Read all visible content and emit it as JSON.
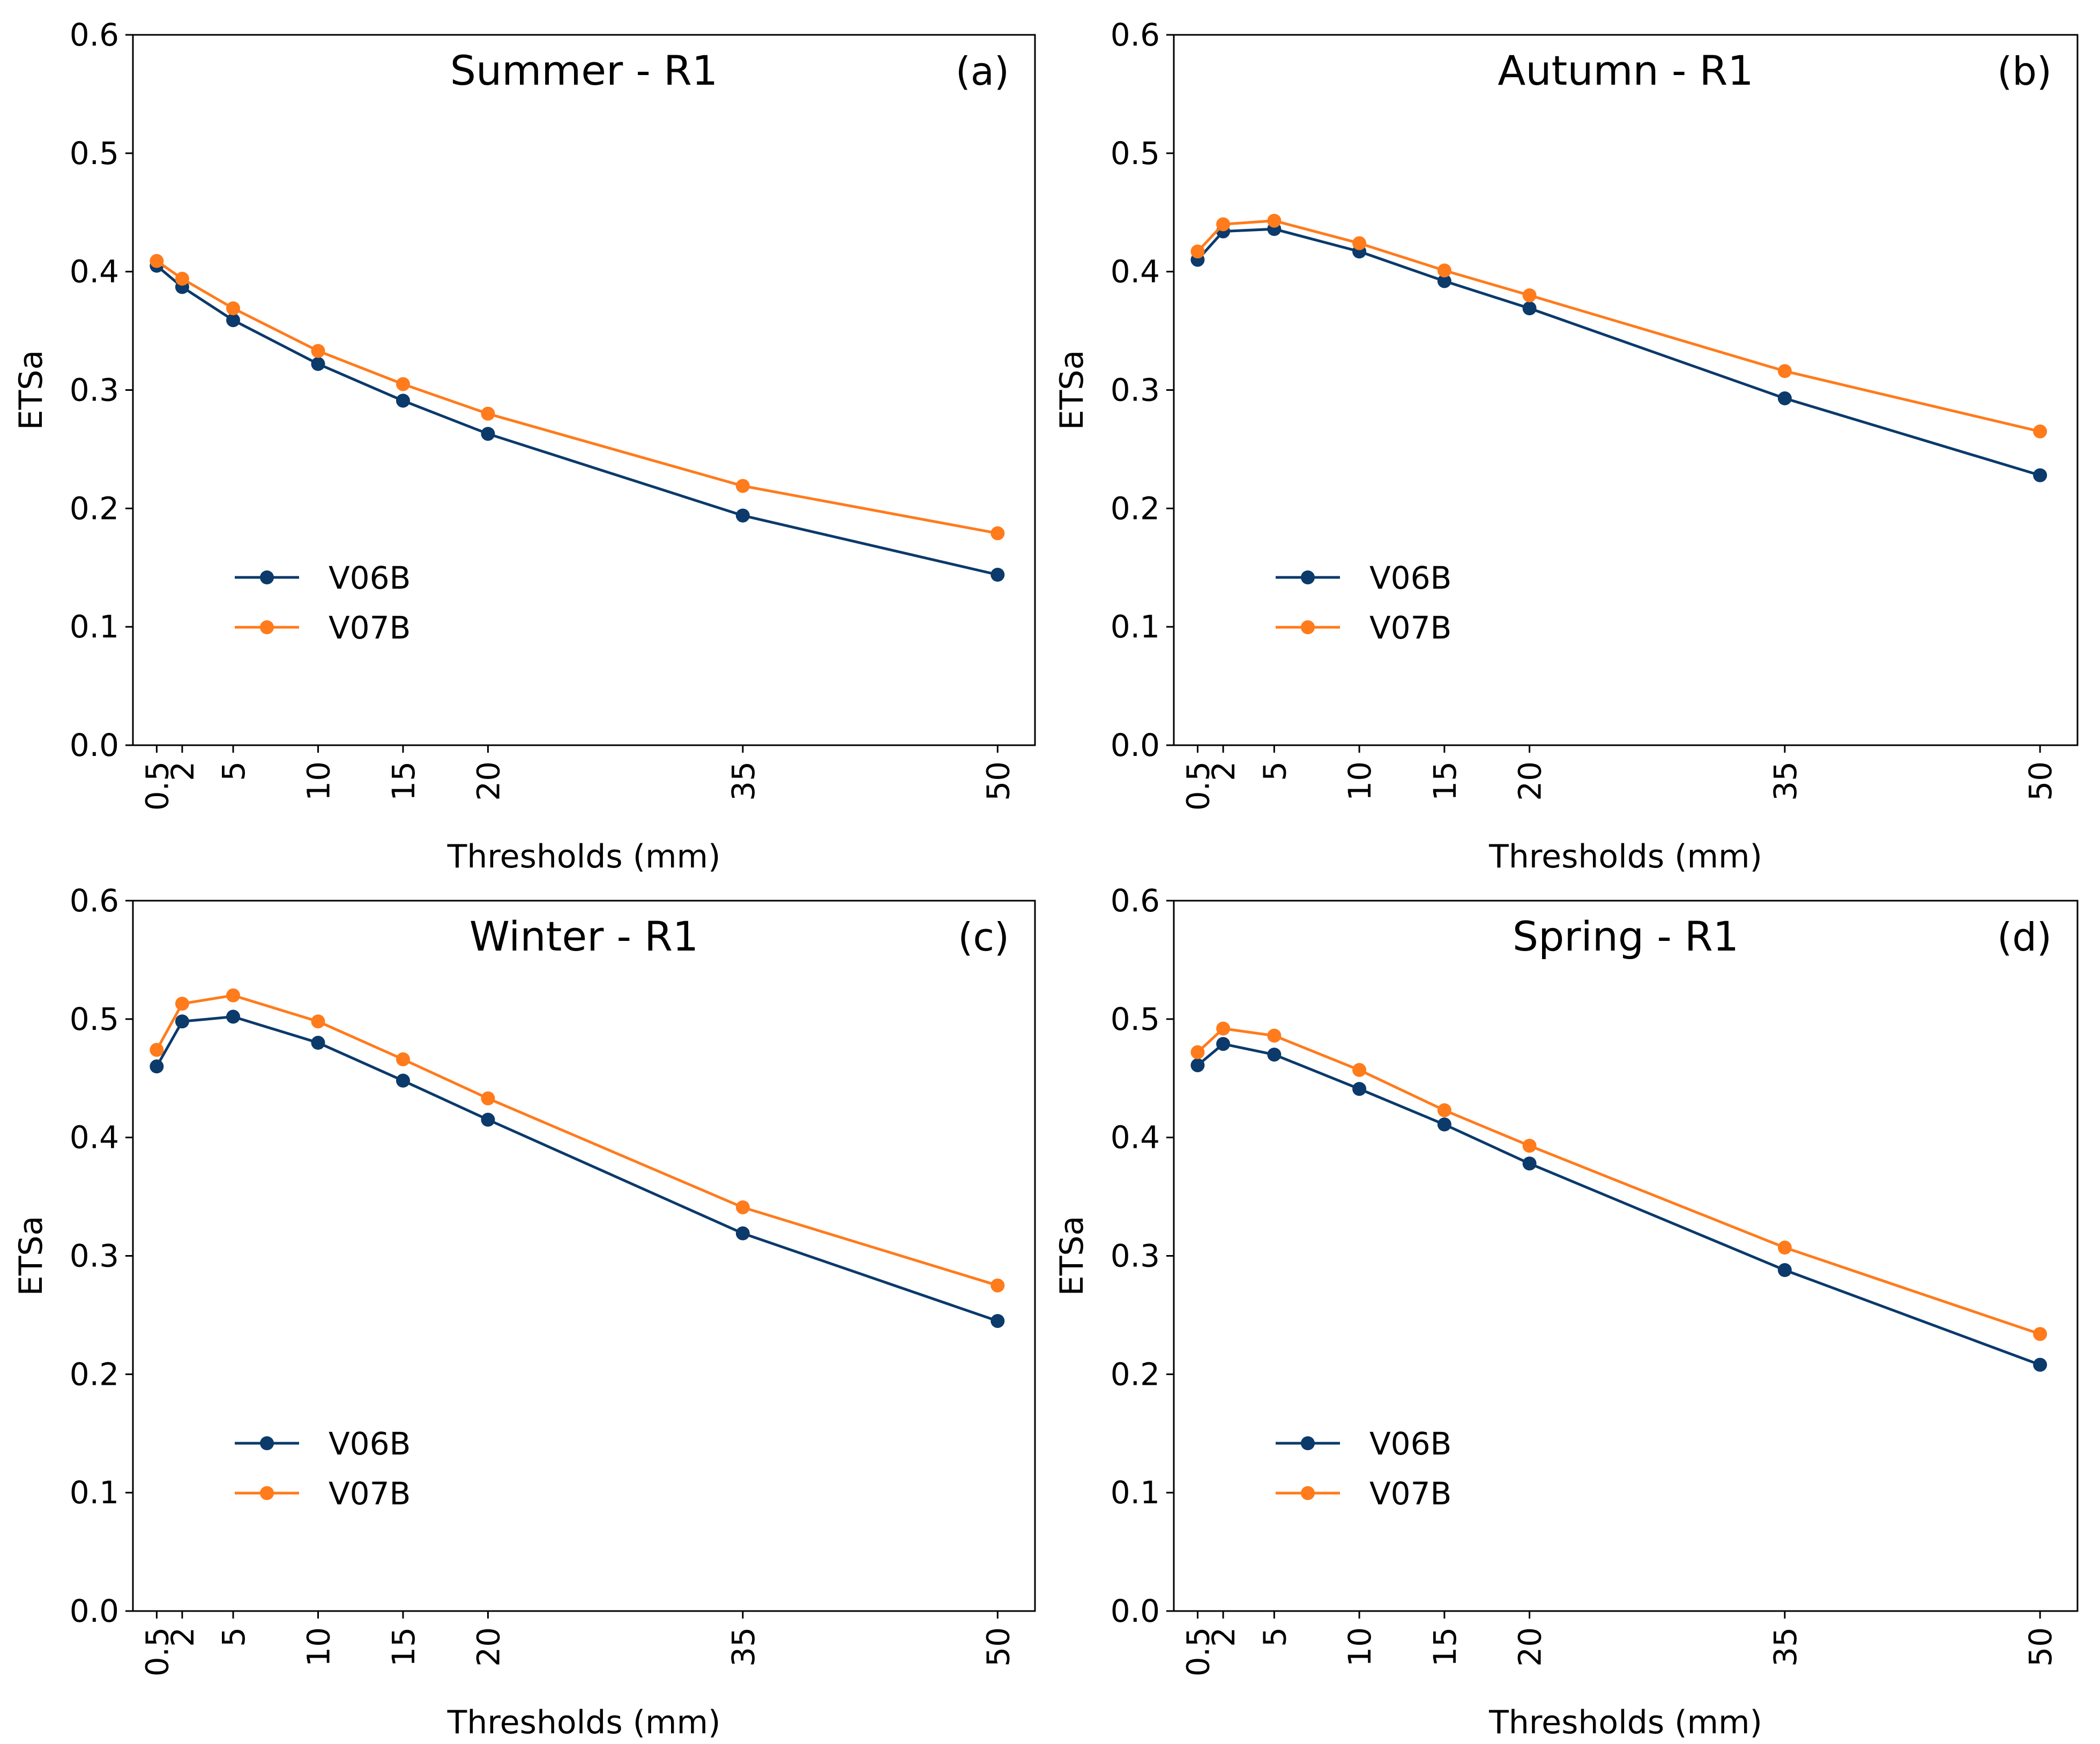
{
  "chart_data": [
    {
      "type": "line",
      "title": "Summer - R1",
      "panel_label": "(a)",
      "xlabel": "Thresholds (mm)",
      "ylabel": "ETSa",
      "ylim": [
        0,
        0.6
      ],
      "yticks": [
        "0.0",
        "0.1",
        "0.2",
        "0.3",
        "0.4",
        "0.5",
        "0.6"
      ],
      "x": [
        0.5,
        2,
        5,
        10,
        15,
        20,
        35,
        50
      ],
      "xtick_labels": [
        "0.5",
        "2",
        "5",
        "10",
        "15",
        "20",
        "35",
        "50"
      ],
      "series": [
        {
          "name": "V06B",
          "color": "#0b3a6b",
          "values": [
            0.405,
            0.387,
            0.359,
            0.322,
            0.291,
            0.263,
            0.194,
            0.144
          ]
        },
        {
          "name": "V07B",
          "color": "#ff7b1c",
          "values": [
            0.409,
            0.394,
            0.369,
            0.333,
            0.305,
            0.28,
            0.219,
            0.179
          ]
        }
      ],
      "legend_position": "lower-left"
    },
    {
      "type": "line",
      "title": "Autumn - R1",
      "panel_label": "(b)",
      "xlabel": "Thresholds (mm)",
      "ylabel": "ETSa",
      "ylim": [
        0,
        0.6
      ],
      "yticks": [
        "0.0",
        "0.1",
        "0.2",
        "0.3",
        "0.4",
        "0.5",
        "0.6"
      ],
      "x": [
        0.5,
        2,
        5,
        10,
        15,
        20,
        35,
        50
      ],
      "xtick_labels": [
        "0.5",
        "2",
        "5",
        "10",
        "15",
        "20",
        "35",
        "50"
      ],
      "series": [
        {
          "name": "V06B",
          "color": "#0b3a6b",
          "values": [
            0.41,
            0.434,
            0.436,
            0.417,
            0.392,
            0.369,
            0.293,
            0.228
          ]
        },
        {
          "name": "V07B",
          "color": "#ff7b1c",
          "values": [
            0.417,
            0.44,
            0.443,
            0.424,
            0.401,
            0.38,
            0.316,
            0.265
          ]
        }
      ],
      "legend_position": "lower-left"
    },
    {
      "type": "line",
      "title": "Winter - R1",
      "panel_label": "(c)",
      "xlabel": "Thresholds (mm)",
      "ylabel": "ETSa",
      "ylim": [
        0,
        0.6
      ],
      "yticks": [
        "0.0",
        "0.1",
        "0.2",
        "0.3",
        "0.4",
        "0.5",
        "0.6"
      ],
      "x": [
        0.5,
        2,
        5,
        10,
        15,
        20,
        35,
        50
      ],
      "xtick_labels": [
        "0.5",
        "2",
        "5",
        "10",
        "15",
        "20",
        "35",
        "50"
      ],
      "series": [
        {
          "name": "V06B",
          "color": "#0b3a6b",
          "values": [
            0.46,
            0.498,
            0.502,
            0.48,
            0.448,
            0.415,
            0.319,
            0.245
          ]
        },
        {
          "name": "V07B",
          "color": "#ff7b1c",
          "values": [
            0.474,
            0.513,
            0.52,
            0.498,
            0.466,
            0.433,
            0.341,
            0.275
          ]
        }
      ],
      "legend_position": "lower-left"
    },
    {
      "type": "line",
      "title": "Spring - R1",
      "panel_label": "(d)",
      "xlabel": "Thresholds (mm)",
      "ylabel": "ETSa",
      "ylim": [
        0,
        0.6
      ],
      "yticks": [
        "0.0",
        "0.1",
        "0.2",
        "0.3",
        "0.4",
        "0.5",
        "0.6"
      ],
      "x": [
        0.5,
        2,
        5,
        10,
        15,
        20,
        35,
        50
      ],
      "xtick_labels": [
        "0.5",
        "2",
        "5",
        "10",
        "15",
        "20",
        "35",
        "50"
      ],
      "series": [
        {
          "name": "V06B",
          "color": "#0b3a6b",
          "values": [
            0.461,
            0.479,
            0.47,
            0.441,
            0.411,
            0.378,
            0.288,
            0.208
          ]
        },
        {
          "name": "V07B",
          "color": "#ff7b1c",
          "values": [
            0.472,
            0.492,
            0.486,
            0.457,
            0.423,
            0.393,
            0.307,
            0.234
          ]
        }
      ],
      "legend_position": "lower-left"
    }
  ]
}
